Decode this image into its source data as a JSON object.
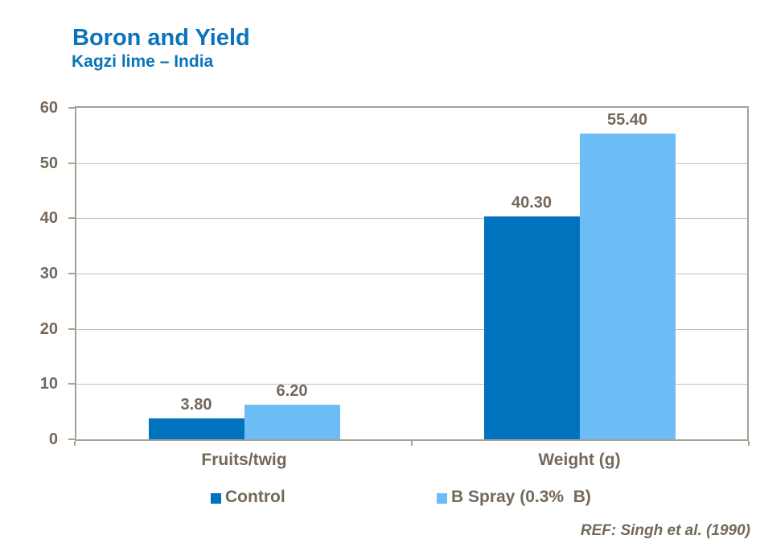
{
  "header": {
    "title": "Boron and Yield",
    "subtitle": "Kagzi lime – India"
  },
  "footer": {
    "reference": "REF: Singh et al. (1990)"
  },
  "colors": {
    "title_blue": "#0B73BB",
    "control_bar": "#0173BE",
    "b_spray_bar": "#6CBDF6",
    "text_brown": "#73685A",
    "axis_border": "#A9A094",
    "gridline": "#C6BFB4",
    "background": "#FFFFFF"
  },
  "chart_data": {
    "type": "bar",
    "title": "Boron and Yield",
    "subtitle": "Kagzi lime – India",
    "categories": [
      "Fruits/twig",
      "Weight (g)"
    ],
    "series": [
      {
        "name": "Control",
        "values": [
          3.8,
          40.3
        ],
        "labels": [
          "3.80",
          "40.30"
        ],
        "color": "#0173BE"
      },
      {
        "name": "B Spray (0.3%  B)",
        "values": [
          6.2,
          55.4
        ],
        "labels": [
          "6.20",
          "55.40"
        ],
        "color": "#6CBDF6"
      }
    ],
    "ylim": [
      0,
      60
    ],
    "yticks": [
      0,
      10,
      20,
      30,
      40,
      50,
      60
    ],
    "grid": true,
    "legend_position": "bottom",
    "reference": "REF: Singh et al. (1990)"
  }
}
